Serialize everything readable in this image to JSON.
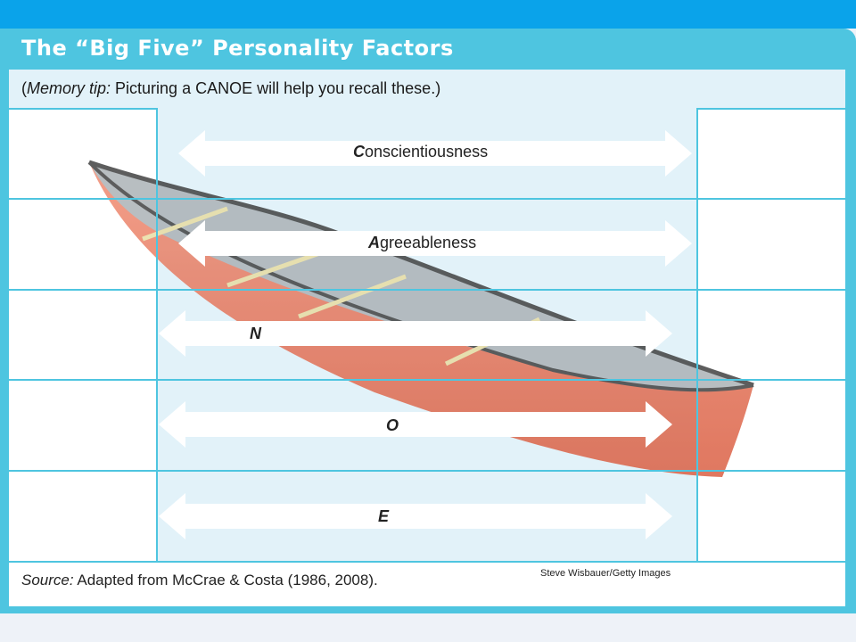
{
  "title": "The “Big Five” Personality Factors",
  "tip": {
    "open": "(",
    "italic": "Memory tip:",
    "rest": " Picturing a CANOE will help you recall these.)"
  },
  "factors": [
    {
      "initial": "C",
      "rest": "onscientiousness"
    },
    {
      "initial": "A",
      "rest": "greeableness"
    },
    {
      "initial": "N",
      "rest": ""
    },
    {
      "initial": "O",
      "rest": ""
    },
    {
      "initial": "E",
      "rest": ""
    }
  ],
  "source": {
    "italic": "Source:",
    "rest": " Adapted from McCrae & Costa (1986, 2008)."
  },
  "credit": "Steve Wisbauer/Getty Images",
  "colors": {
    "panel": "#4ec5e0",
    "topbar": "#0aa3ea",
    "highlight": "#e2f2f9",
    "canoe_hull": "#e8735a"
  }
}
